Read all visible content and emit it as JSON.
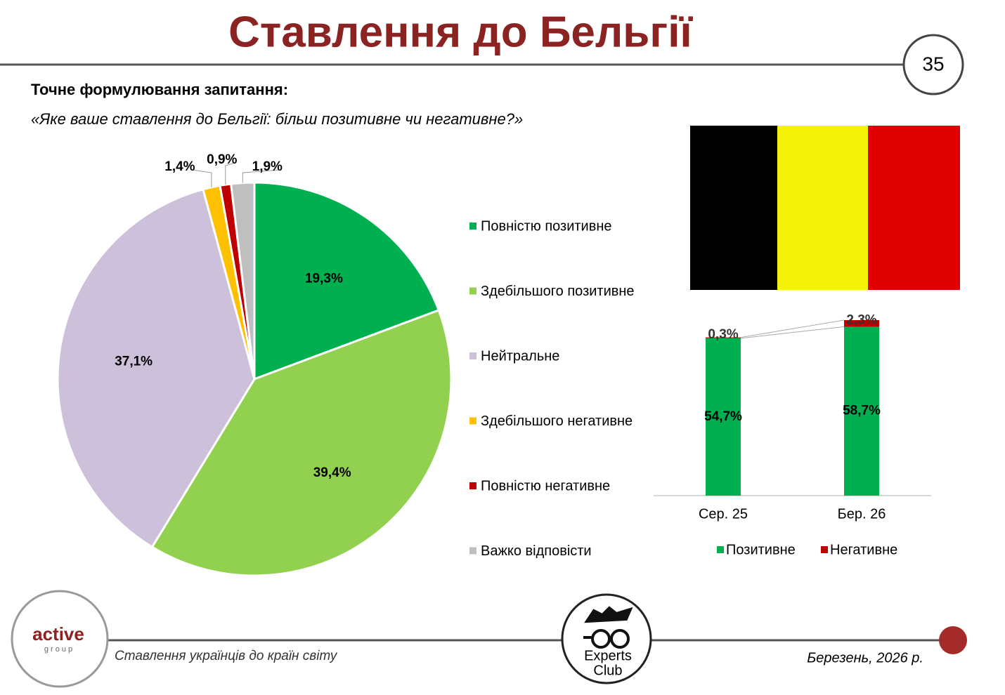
{
  "header": {
    "title": "Ставлення до Бельгії",
    "page_number": "35",
    "question_heading": "Точне формулювання запитання:",
    "question": "«Яке ваше ставлення до Бельгії: більш позитивне чи негативне?»"
  },
  "chart_data": [
    {
      "type": "pie",
      "categories": [
        "Повністю позитивне",
        "Здебільшого позитивне",
        "Нейтральне",
        "Здебільшого негативне",
        "Повністю негативне",
        "Важко відповісти"
      ],
      "values": [
        19.3,
        39.4,
        37.1,
        1.4,
        0.9,
        1.9
      ],
      "value_labels": [
        "19,3%",
        "39,4%",
        "37,1%",
        "1,4%",
        "0,9%",
        "1,9%"
      ],
      "colors": [
        "#00b050",
        "#92d050",
        "#ccc0da",
        "#ffc000",
        "#c00000",
        "#bfbfbf"
      ]
    },
    {
      "type": "stacked-bar",
      "categories": [
        "Сер. 25",
        "Бер. 26"
      ],
      "series": [
        {
          "name": "Позитивне",
          "color": "#00b050",
          "values": [
            54.7,
            58.7
          ],
          "value_labels": [
            "54,7%",
            "58,7%"
          ]
        },
        {
          "name": "Негативне",
          "color": "#c00000",
          "values": [
            0.3,
            2.3
          ],
          "value_labels": [
            "0,3%",
            "2,3%"
          ]
        }
      ]
    }
  ],
  "footer": {
    "caption": "Ставлення українців до країн світу",
    "date": "Березень, 2026 р.",
    "logo_left": "active",
    "logo_left_sub": "g r o u p",
    "logo_center_1": "Experts",
    "logo_center_2": "Club"
  }
}
